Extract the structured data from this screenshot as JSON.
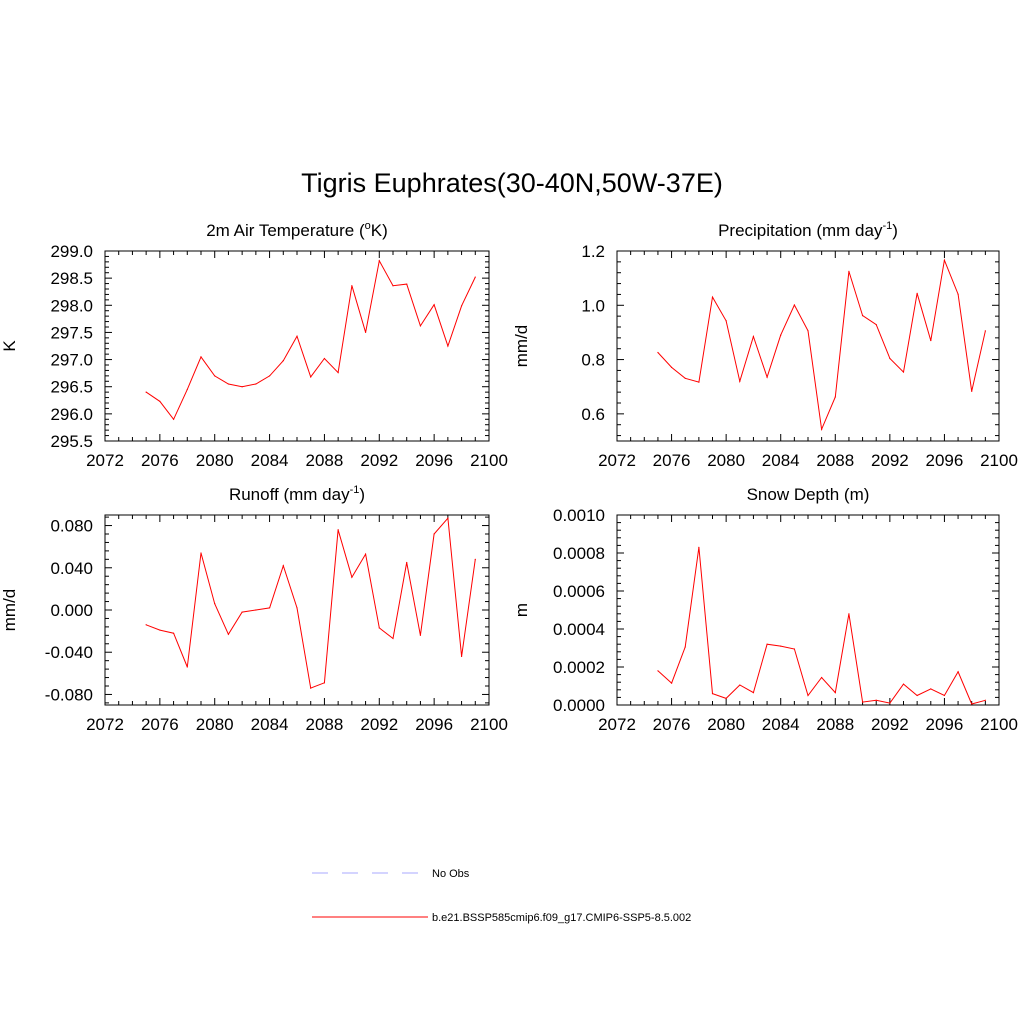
{
  "figure": {
    "title": "Tigris Euphrates(30-40N,50W-37E)"
  },
  "legend": {
    "items": [
      {
        "label": "No Obs",
        "style": "dashed",
        "color": "#a8a8ff"
      },
      {
        "label": "b.e21.BSSP585cmip6.f09_g17.CMIP6-SSP5-8.5.002",
        "style": "solid",
        "color": "#ff0000"
      }
    ]
  },
  "chart_data": [
    {
      "type": "line",
      "title_main": "2m Air Temperature (",
      "title_sup_pre": "o",
      "title_post": "K)",
      "title_sup_post": "",
      "title_end": "",
      "ylabel": "K",
      "xlim": [
        2072,
        2100
      ],
      "ylim": [
        295.5,
        299.0
      ],
      "xticks": [
        2072,
        2076,
        2080,
        2084,
        2088,
        2092,
        2096,
        2100
      ],
      "yticks": [
        295.5,
        296.0,
        296.5,
        297.0,
        297.5,
        298.0,
        298.5,
        299.0
      ],
      "ytick_labels": [
        "295.5",
        "296.0",
        "296.5",
        "297.0",
        "297.5",
        "298.0",
        "298.5",
        "299.0"
      ],
      "color": "#ff0000",
      "x": [
        2075,
        2076,
        2077,
        2078,
        2079,
        2080,
        2081,
        2082,
        2083,
        2084,
        2085,
        2086,
        2087,
        2088,
        2089,
        2090,
        2091,
        2092,
        2093,
        2094,
        2095,
        2096,
        2097,
        2098,
        2099
      ],
      "y": [
        296.4,
        296.23,
        295.9,
        296.45,
        297.05,
        296.7,
        296.55,
        296.5,
        296.55,
        296.7,
        296.98,
        297.43,
        296.68,
        297.02,
        296.76,
        298.36,
        297.5,
        298.82,
        298.36,
        298.39,
        297.62,
        298.01,
        297.25,
        297.99,
        298.52
      ]
    },
    {
      "type": "line",
      "title_main": "Precipitation (mm day",
      "title_sup_pre": "",
      "title_post": "",
      "title_sup_post": "-1",
      "title_end": ")",
      "ylabel": "mm/d",
      "xlim": [
        2072,
        2100
      ],
      "ylim": [
        0.5,
        1.2
      ],
      "xticks": [
        2072,
        2076,
        2080,
        2084,
        2088,
        2092,
        2096,
        2100
      ],
      "yticks": [
        0.6,
        0.8,
        1.0,
        1.2
      ],
      "ytick_labels": [
        "0.6",
        "0.8",
        "1.0",
        "1.2"
      ],
      "color": "#ff0000",
      "x": [
        2075,
        2076,
        2077,
        2078,
        2079,
        2080,
        2081,
        2082,
        2083,
        2084,
        2085,
        2086,
        2087,
        2088,
        2089,
        2090,
        2091,
        2092,
        2093,
        2094,
        2095,
        2096,
        2097,
        2098,
        2099
      ],
      "y": [
        0.826,
        0.771,
        0.731,
        0.717,
        1.03,
        0.943,
        0.72,
        0.885,
        0.735,
        0.89,
        1.001,
        0.906,
        0.543,
        0.662,
        1.125,
        0.962,
        0.929,
        0.804,
        0.754,
        1.044,
        0.87,
        1.166,
        1.041,
        0.683,
        0.906
      ]
    },
    {
      "type": "line",
      "title_main": "Runoff (mm day",
      "title_sup_pre": "",
      "title_post": "",
      "title_sup_post": "-1",
      "title_end": ")",
      "ylabel": "mm/d",
      "xlim": [
        2072,
        2100
      ],
      "ylim": [
        -0.09,
        0.09
      ],
      "xticks": [
        2072,
        2076,
        2080,
        2084,
        2088,
        2092,
        2096,
        2100
      ],
      "yticks": [
        -0.08,
        -0.04,
        0.0,
        0.04,
        0.08
      ],
      "ytick_labels": [
        "-0.080",
        "-0.040",
        "0.000",
        "0.040",
        "0.080"
      ],
      "color": "#ff0000",
      "x": [
        2075,
        2076,
        2077,
        2078,
        2079,
        2080,
        2081,
        2082,
        2083,
        2084,
        2085,
        2086,
        2087,
        2088,
        2089,
        2090,
        2091,
        2092,
        2093,
        2094,
        2095,
        2096,
        2097,
        2098,
        2099
      ],
      "y": [
        -0.014,
        -0.019,
        -0.022,
        -0.054,
        0.054,
        0.006,
        -0.023,
        -0.002,
        0.0,
        0.002,
        0.042,
        0.002,
        -0.074,
        -0.069,
        0.076,
        0.031,
        0.053,
        -0.017,
        -0.027,
        0.045,
        -0.024,
        0.072,
        0.087,
        -0.044,
        0.048
      ]
    },
    {
      "type": "line",
      "title_main": "Snow Depth (m)",
      "title_sup_pre": "",
      "title_post": "",
      "title_sup_post": "",
      "title_end": "",
      "ylabel": "m",
      "xlim": [
        2072,
        2100
      ],
      "ylim": [
        0.0,
        0.001
      ],
      "xticks": [
        2072,
        2076,
        2080,
        2084,
        2088,
        2092,
        2096,
        2100
      ],
      "yticks": [
        0.0,
        0.0002,
        0.0004,
        0.0006,
        0.0008,
        0.001
      ],
      "ytick_labels": [
        "0.0000",
        "0.0002",
        "0.0004",
        "0.0006",
        "0.0008",
        "0.0010"
      ],
      "color": "#ff0000",
      "x": [
        2075,
        2076,
        2077,
        2078,
        2079,
        2080,
        2081,
        2082,
        2083,
        2084,
        2085,
        2086,
        2087,
        2088,
        2089,
        2090,
        2091,
        2092,
        2093,
        2094,
        2095,
        2096,
        2097,
        2098,
        2099
      ],
      "y": [
        0.00018,
        0.000115,
        0.000305,
        0.00083,
        6e-05,
        3.5e-05,
        0.000105,
        6.5e-05,
        0.00032,
        0.00031,
        0.000295,
        5e-05,
        0.000145,
        6.5e-05,
        0.00048,
        1.5e-05,
        2.5e-05,
        1e-05,
        0.00011,
        5e-05,
        8.5e-05,
        5e-05,
        0.000175,
        5e-06,
        2.5e-05
      ]
    }
  ]
}
